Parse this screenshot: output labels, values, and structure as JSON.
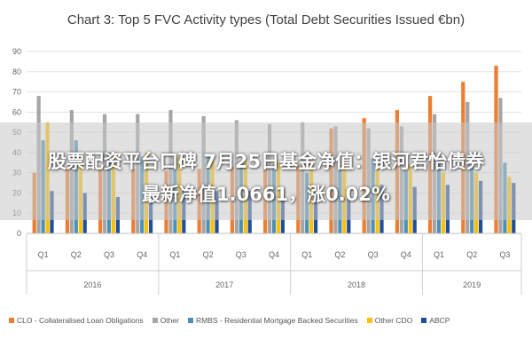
{
  "headline": {
    "line1": "股票配资平台口碑 7月25日基金净值：银河君怡债券",
    "line2": "最新净值1.0661，涨0.02%"
  },
  "chart_data": {
    "type": "bar",
    "title": "Chart 3: Top 5 FVC Activity types (Total Debt Securities Issued €bn)",
    "xlabel": "",
    "ylabel": "",
    "ylim": [
      0,
      90
    ],
    "yticks": [
      0,
      10,
      20,
      30,
      40,
      50,
      60,
      70,
      80,
      90
    ],
    "grid": true,
    "legend_position": "bottom",
    "categories": [
      "Q1",
      "Q2",
      "Q3",
      "Q4",
      "Q1",
      "Q2",
      "Q3",
      "Q4",
      "Q1",
      "Q2",
      "Q3",
      "Q4",
      "Q1",
      "Q2",
      "Q3"
    ],
    "groups": [
      {
        "label": "2016",
        "count": 4
      },
      {
        "label": "2017",
        "count": 4
      },
      {
        "label": "2018",
        "count": 4
      },
      {
        "label": "2019",
        "count": 3
      }
    ],
    "series": [
      {
        "name": "CLO - Collateralised Loan Obligations",
        "color": "#ed7d31",
        "values": [
          30,
          32,
          32,
          32,
          31,
          32,
          33,
          34,
          34,
          52,
          57,
          61,
          68,
          75,
          83
        ]
      },
      {
        "name": "Other",
        "color": "#a5a5a5",
        "values": [
          68,
          61,
          59,
          59,
          61,
          58,
          56,
          54,
          55,
          53,
          52,
          53,
          59,
          65,
          67
        ]
      },
      {
        "name": "RMBS - Residential Mortgage Backed Securities",
        "color": "#4a90b8",
        "values": [
          46,
          46,
          40,
          38,
          38,
          39,
          36,
          34,
          30,
          33,
          37,
          31,
          36,
          36,
          35
        ]
      },
      {
        "name": "Other CDO",
        "color": "#ffc000",
        "values": [
          55,
          40,
          39,
          40,
          38,
          36,
          36,
          35,
          36,
          36,
          34,
          34,
          30,
          30,
          28
        ]
      },
      {
        "name": "ABCP",
        "color": "#1f4e9c",
        "values": [
          21,
          20,
          18,
          20,
          22,
          21,
          21,
          22,
          20,
          21,
          24,
          23,
          24,
          26,
          25
        ]
      }
    ]
  }
}
